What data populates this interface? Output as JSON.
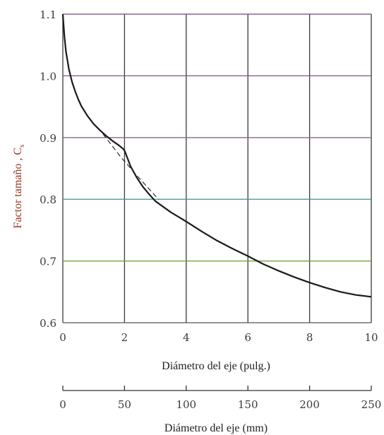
{
  "chart_data": {
    "type": "line",
    "ylabel": "Factor tamaño , C",
    "ylabel_sub": "s",
    "xlabel": "Diámetro del eje (pulg.)",
    "x2label": "Diámetro del eje (mm)",
    "xlim": [
      0,
      10
    ],
    "ylim": [
      0.6,
      1.1
    ],
    "x_ticks": [
      "0",
      "2",
      "4",
      "6",
      "8",
      "10"
    ],
    "y_ticks": [
      "0.6",
      "0.7",
      "0.8",
      "0.9",
      "1.0",
      "1.1"
    ],
    "x2lim": [
      0,
      250
    ],
    "x2_ticks": [
      "0",
      "50",
      "100",
      "150",
      "200",
      "250"
    ],
    "grid": true,
    "colors": {
      "curve": "#1a1a1a",
      "vertical_grid": "#3a3a3a",
      "hgrid_1_1": "#6a4a7a",
      "hgrid_1_0": "#8a4a8a",
      "hgrid_0_9": "#9a5aa0",
      "hgrid_0_8": "#2aa8a0",
      "hgrid_0_7": "#6a9a30",
      "hgrid_0_6": "#555555"
    },
    "series": [
      {
        "style": "solid",
        "x": [
          0.0,
          0.05,
          0.1,
          0.2,
          0.3,
          0.4,
          0.5,
          0.6,
          0.8,
          1.0,
          1.2,
          1.4,
          1.6,
          1.8,
          1.95,
          2.0,
          2.2,
          2.4,
          2.6,
          2.8,
          3.0,
          3.5,
          4.0,
          4.5,
          5.0,
          5.5,
          6.0,
          6.5,
          7.0,
          7.5,
          8.0,
          8.5,
          9.0,
          9.5,
          10.0
        ],
        "y": [
          1.1,
          1.065,
          1.04,
          1.01,
          0.99,
          0.975,
          0.962,
          0.951,
          0.935,
          0.922,
          0.912,
          0.903,
          0.895,
          0.888,
          0.882,
          0.879,
          0.853,
          0.835,
          0.82,
          0.808,
          0.797,
          0.779,
          0.764,
          0.748,
          0.733,
          0.72,
          0.708,
          0.695,
          0.684,
          0.674,
          0.665,
          0.657,
          0.65,
          0.645,
          0.642
        ]
      },
      {
        "style": "dashed",
        "x": [
          1.3,
          1.5,
          1.7,
          1.9,
          2.1,
          2.3,
          2.5,
          2.7,
          2.9,
          3.1
        ],
        "y": [
          0.906,
          0.893,
          0.88,
          0.867,
          0.856,
          0.844,
          0.833,
          0.822,
          0.811,
          0.8
        ]
      }
    ]
  }
}
